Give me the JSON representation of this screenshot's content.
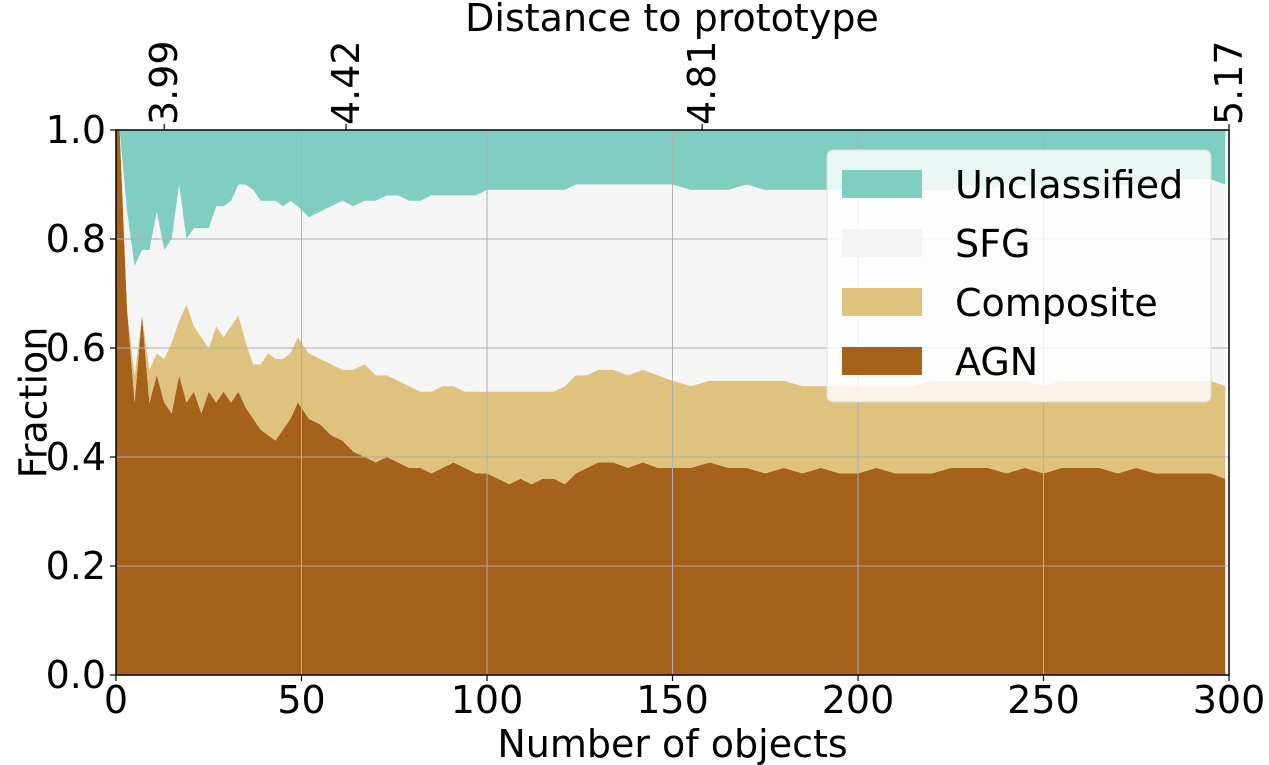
{
  "chart_data": {
    "type": "area",
    "stacked": true,
    "normalized": true,
    "xlabel": "Number of objects",
    "ylabel": "Fraction",
    "top_xlabel": "Distance to prototype",
    "xlim": [
      0,
      300
    ],
    "ylim": [
      0.0,
      1.0
    ],
    "grid": true,
    "legend_position": "upper right",
    "xticks": [
      0,
      50,
      100,
      150,
      200,
      250,
      300
    ],
    "xtick_labels": [
      "0",
      "50",
      "100",
      "150",
      "200",
      "250",
      "300"
    ],
    "yticks": [
      0.0,
      0.2,
      0.4,
      0.6,
      0.8,
      1.0
    ],
    "ytick_labels": [
      "0.0",
      "0.2",
      "0.4",
      "0.6",
      "0.8",
      "1.0"
    ],
    "top_ticks": [
      {
        "x": 13,
        "label": "3.99"
      },
      {
        "x": 62,
        "label": "4.42"
      },
      {
        "x": 158,
        "label": "4.81"
      },
      {
        "x": 300,
        "label": "5.17"
      }
    ],
    "x": [
      1,
      3,
      5,
      7,
      9,
      11,
      13,
      15,
      17,
      19,
      21,
      23,
      25,
      27,
      29,
      31,
      33,
      35,
      37,
      39,
      41,
      43,
      45,
      47,
      49,
      52,
      55,
      58,
      61,
      64,
      67,
      70,
      73,
      76,
      79,
      82,
      85,
      88,
      91,
      94,
      97,
      100,
      103,
      106,
      109,
      112,
      115,
      118,
      121,
      124,
      127,
      130,
      134,
      138,
      142,
      146,
      150,
      155,
      160,
      165,
      170,
      175,
      180,
      185,
      190,
      195,
      200,
      205,
      210,
      215,
      220,
      225,
      230,
      235,
      240,
      245,
      250,
      255,
      260,
      265,
      270,
      275,
      280,
      285,
      290,
      295,
      299
    ],
    "series": [
      {
        "name": "AGN",
        "color": "#a6611a",
        "values": [
          1.0,
          0.67,
          0.5,
          0.66,
          0.5,
          0.55,
          0.5,
          0.48,
          0.55,
          0.5,
          0.52,
          0.48,
          0.52,
          0.5,
          0.52,
          0.5,
          0.52,
          0.49,
          0.47,
          0.45,
          0.44,
          0.43,
          0.45,
          0.47,
          0.5,
          0.47,
          0.46,
          0.44,
          0.43,
          0.41,
          0.4,
          0.39,
          0.4,
          0.39,
          0.38,
          0.38,
          0.37,
          0.38,
          0.39,
          0.38,
          0.37,
          0.37,
          0.36,
          0.35,
          0.36,
          0.35,
          0.36,
          0.36,
          0.35,
          0.37,
          0.38,
          0.39,
          0.39,
          0.38,
          0.39,
          0.38,
          0.38,
          0.38,
          0.39,
          0.38,
          0.38,
          0.37,
          0.38,
          0.37,
          0.38,
          0.37,
          0.37,
          0.38,
          0.37,
          0.37,
          0.37,
          0.38,
          0.38,
          0.38,
          0.37,
          0.38,
          0.37,
          0.38,
          0.38,
          0.38,
          0.37,
          0.38,
          0.37,
          0.37,
          0.37,
          0.37,
          0.36
        ]
      },
      {
        "name": "Composite",
        "color": "#dfc27d",
        "values": [
          0.0,
          0.0,
          0.05,
          0.0,
          0.06,
          0.04,
          0.08,
          0.13,
          0.1,
          0.18,
          0.12,
          0.14,
          0.08,
          0.14,
          0.1,
          0.14,
          0.14,
          0.12,
          0.1,
          0.12,
          0.15,
          0.15,
          0.13,
          0.12,
          0.12,
          0.12,
          0.12,
          0.13,
          0.13,
          0.15,
          0.17,
          0.16,
          0.15,
          0.15,
          0.15,
          0.14,
          0.15,
          0.15,
          0.14,
          0.14,
          0.15,
          0.15,
          0.16,
          0.17,
          0.16,
          0.17,
          0.16,
          0.16,
          0.18,
          0.18,
          0.17,
          0.17,
          0.17,
          0.17,
          0.17,
          0.17,
          0.16,
          0.15,
          0.15,
          0.16,
          0.16,
          0.17,
          0.16,
          0.16,
          0.15,
          0.16,
          0.16,
          0.15,
          0.16,
          0.16,
          0.17,
          0.16,
          0.16,
          0.16,
          0.17,
          0.16,
          0.16,
          0.16,
          0.16,
          0.16,
          0.17,
          0.16,
          0.17,
          0.17,
          0.17,
          0.17,
          0.17
        ]
      },
      {
        "name": "SFG",
        "color": "#f5f5f5",
        "values": [
          0.0,
          0.18,
          0.2,
          0.12,
          0.22,
          0.26,
          0.2,
          0.19,
          0.25,
          0.12,
          0.18,
          0.2,
          0.22,
          0.22,
          0.24,
          0.23,
          0.24,
          0.29,
          0.32,
          0.3,
          0.28,
          0.29,
          0.28,
          0.28,
          0.24,
          0.25,
          0.27,
          0.29,
          0.31,
          0.3,
          0.3,
          0.32,
          0.33,
          0.34,
          0.34,
          0.35,
          0.36,
          0.35,
          0.35,
          0.36,
          0.36,
          0.37,
          0.37,
          0.37,
          0.37,
          0.37,
          0.37,
          0.37,
          0.36,
          0.35,
          0.35,
          0.34,
          0.34,
          0.35,
          0.34,
          0.35,
          0.36,
          0.36,
          0.35,
          0.35,
          0.36,
          0.35,
          0.35,
          0.36,
          0.36,
          0.36,
          0.36,
          0.36,
          0.36,
          0.36,
          0.35,
          0.35,
          0.36,
          0.35,
          0.36,
          0.36,
          0.36,
          0.36,
          0.36,
          0.36,
          0.36,
          0.36,
          0.36,
          0.37,
          0.37,
          0.37,
          0.37
        ]
      },
      {
        "name": "Unclassified",
        "color": "#80cdc1",
        "values": [
          0.0,
          0.15,
          0.25,
          0.22,
          0.22,
          0.15,
          0.22,
          0.2,
          0.1,
          0.2,
          0.18,
          0.18,
          0.18,
          0.14,
          0.14,
          0.13,
          0.1,
          0.1,
          0.11,
          0.13,
          0.13,
          0.13,
          0.14,
          0.13,
          0.14,
          0.16,
          0.15,
          0.14,
          0.13,
          0.14,
          0.13,
          0.13,
          0.12,
          0.12,
          0.13,
          0.13,
          0.12,
          0.12,
          0.12,
          0.12,
          0.12,
          0.11,
          0.11,
          0.11,
          0.11,
          0.11,
          0.11,
          0.11,
          0.11,
          0.1,
          0.1,
          0.1,
          0.1,
          0.1,
          0.1,
          0.1,
          0.1,
          0.11,
          0.11,
          0.11,
          0.1,
          0.11,
          0.11,
          0.11,
          0.11,
          0.11,
          0.11,
          0.11,
          0.11,
          0.11,
          0.11,
          0.11,
          0.1,
          0.11,
          0.1,
          0.1,
          0.11,
          0.1,
          0.1,
          0.1,
          0.1,
          0.1,
          0.1,
          0.09,
          0.09,
          0.09,
          0.1
        ]
      }
    ],
    "legend_order": [
      "Unclassified",
      "SFG",
      "Composite",
      "AGN"
    ]
  }
}
